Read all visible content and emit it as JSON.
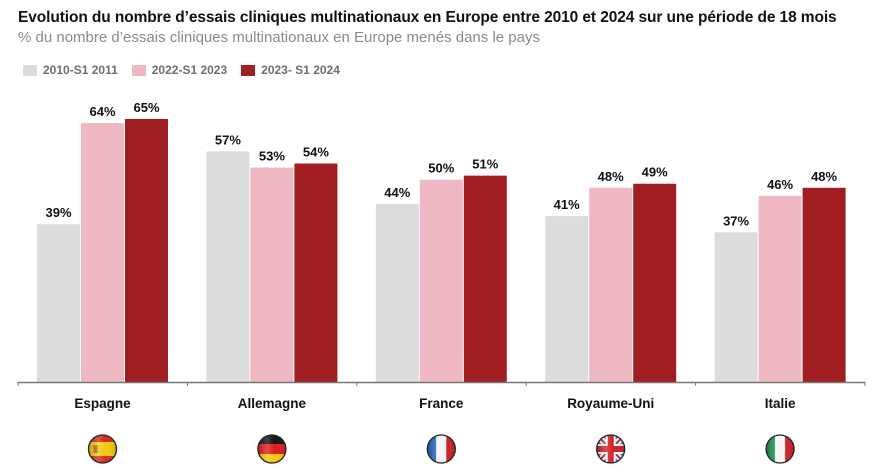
{
  "chart_data": {
    "type": "bar",
    "title": "Evolution du nombre d’essais cliniques multinationaux en Europe entre 2010 et 2024 sur une période de 18 mois",
    "subtitle": "% du nombre d’essais cliniques multinationaux en Europe menés dans le pays",
    "xlabel": "",
    "ylabel": "",
    "ylim": [
      0,
      65
    ],
    "grid": false,
    "legend_position": "top-left",
    "categories": [
      "Espagne",
      "Allemagne",
      "France",
      "Royaume-Uni",
      "Italie"
    ],
    "category_icons": [
      "flag-spain-icon",
      "flag-germany-icon",
      "flag-france-icon",
      "flag-uk-icon",
      "flag-italy-icon"
    ],
    "series": [
      {
        "name": "2010-S1 2011",
        "color": "#dcdcdc",
        "values": [
          39,
          57,
          44,
          41,
          37
        ],
        "labels": [
          "39%",
          "57%",
          "44%",
          "41%",
          "37%"
        ]
      },
      {
        "name": "2022-S1 2023",
        "color": "#f0b8c2",
        "values": [
          64,
          53,
          50,
          48,
          46
        ],
        "labels": [
          "64%",
          "53%",
          "50%",
          "48%",
          "46%"
        ]
      },
      {
        "name": "2023- S1 2024",
        "color": "#a01e22",
        "values": [
          65,
          54,
          51,
          49,
          48
        ],
        "labels": [
          "65%",
          "54%",
          "51%",
          "49%",
          "48%"
        ]
      }
    ]
  }
}
